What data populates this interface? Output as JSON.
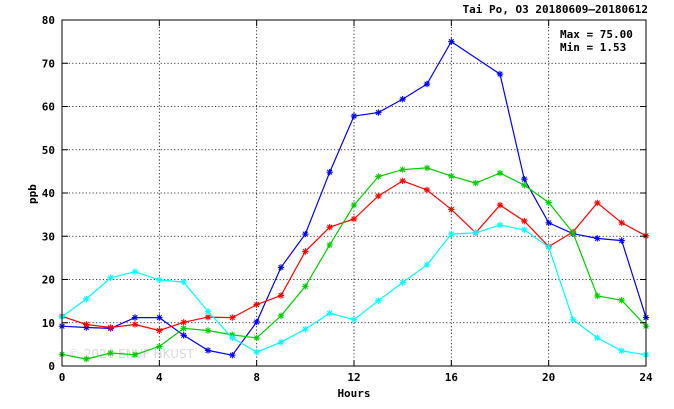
{
  "chart_data": {
    "type": "line",
    "title": "Tai Po, O3 20180609—20180612",
    "xlabel": "Hours",
    "ylabel": "ppb",
    "xlim": [
      0,
      24
    ],
    "ylim": [
      0,
      80
    ],
    "xticks": [
      0,
      4,
      8,
      12,
      16,
      20,
      24
    ],
    "yticks": [
      0,
      10,
      20,
      30,
      40,
      50,
      60,
      70,
      80
    ],
    "grid": true,
    "stats": {
      "max_label": "Max = 75.00",
      "min_label": "Min =  1.53"
    },
    "watermark": "© 2026 ENVF HKUST",
    "x": [
      0,
      1,
      2,
      3,
      4,
      5,
      6,
      7,
      8,
      9,
      10,
      11,
      12,
      13,
      14,
      15,
      16,
      17,
      18,
      19,
      20,
      21,
      22,
      23,
      24
    ],
    "series": [
      {
        "color": "#0000ff",
        "values": [
          9.2,
          8.9,
          8.7,
          11.2,
          11.2,
          7.1,
          3.6,
          2.5,
          10.2,
          22.8,
          30.5,
          44.8,
          57.8,
          58.6,
          61.7,
          65.2,
          75.0,
          null,
          67.5,
          43.2,
          33.1,
          30.6,
          29.5,
          29.0,
          11.2
        ]
      },
      {
        "color": "#ff0000",
        "values": [
          11.5,
          9.6,
          8.9,
          9.6,
          8.2,
          10.1,
          11.3,
          11.2,
          14.2,
          16.3,
          26.5,
          32.1,
          34.0,
          39.3,
          42.8,
          40.7,
          36.2,
          30.8,
          37.2,
          33.5,
          27.6,
          31.0,
          37.7,
          33.1,
          30.1
        ]
      },
      {
        "color": "#00cc00",
        "values": [
          2.7,
          1.6,
          3.0,
          2.6,
          4.5,
          8.7,
          8.2,
          7.2,
          6.5,
          11.6,
          18.4,
          28.0,
          37.2,
          43.8,
          45.4,
          45.8,
          43.9,
          42.3,
          44.6,
          41.8,
          37.8,
          30.8,
          16.2,
          15.2,
          9.2
        ]
      },
      {
        "color": "#00ffff",
        "values": [
          11.4,
          15.5,
          20.4,
          21.8,
          19.9,
          19.4,
          12.6,
          6.5,
          3.2,
          5.5,
          8.5,
          12.2,
          10.7,
          15.1,
          19.3,
          23.4,
          30.5,
          30.8,
          32.6,
          31.5,
          27.5,
          10.7,
          6.5,
          3.5,
          2.6
        ]
      }
    ]
  }
}
